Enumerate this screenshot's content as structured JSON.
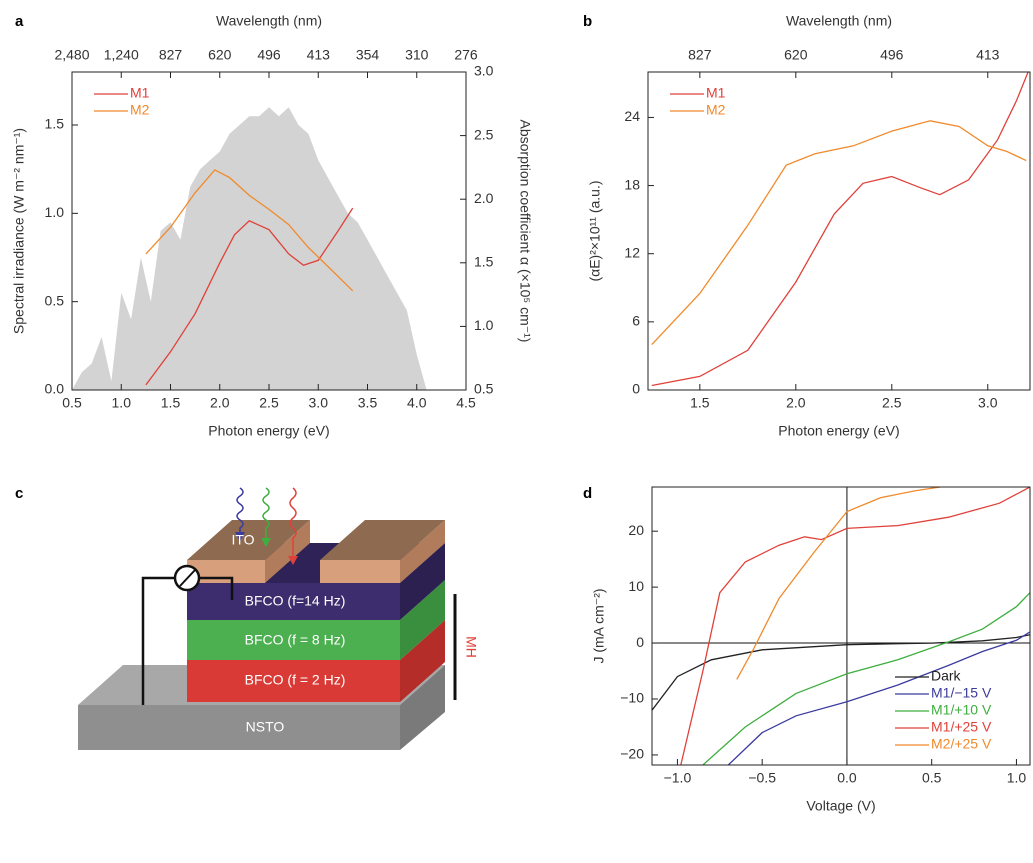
{
  "chart_data": [
    {
      "panel_label": "a",
      "type": "line",
      "x_label": "Photon energy (eV)",
      "y_label": "Spectral irradiance (W m⁻² nm⁻¹)",
      "y2_label": "Absorption coefficient α (×10⁵ cm⁻¹)",
      "top_label": "Wavelength (nm)",
      "xlim": [
        0.5,
        4.5
      ],
      "xticks": [
        0.5,
        {
          "value": 1,
          "label": "1.0"
        },
        1.5,
        {
          "value": 2,
          "label": "2.0"
        },
        2.5,
        {
          "value": 3,
          "label": "3.0"
        },
        3.5,
        {
          "value": 4,
          "label": "4.0"
        },
        4.5
      ],
      "top_ticks": [
        {
          "value": 0.5,
          "label": "2,480"
        },
        {
          "value": 1,
          "label": "1,240"
        },
        {
          "value": 1.5,
          "label": "827"
        },
        {
          "value": 2,
          "label": "620"
        },
        {
          "value": 2.5,
          "label": "496"
        },
        {
          "value": 3,
          "label": "413"
        },
        {
          "value": 3.5,
          "label": "354"
        },
        {
          "value": 4,
          "label": "310"
        },
        {
          "value": 4.5,
          "label": "276"
        }
      ],
      "ylim": [
        0,
        1.8
      ],
      "yticks": [
        {
          "value": 0,
          "label": "0.0"
        },
        0.5,
        {
          "value": 1,
          "label": "1.0"
        },
        1.5
      ],
      "y2lim": [
        0.5,
        3.0
      ],
      "y2ticks": [
        0.5,
        {
          "value": 1,
          "label": "1.0"
        },
        1.5,
        {
          "value": 2,
          "label": "2.0"
        },
        2.5,
        {
          "value": 3,
          "label": "3.0"
        }
      ],
      "legend": "upper left",
      "area": {
        "color": "#d3d3d3",
        "x": [
          0.5,
          0.6,
          0.7,
          0.8,
          0.9,
          1.0,
          1.1,
          1.2,
          1.3,
          1.4,
          1.5,
          1.6,
          1.7,
          1.8,
          1.9,
          2.0,
          2.1,
          2.2,
          2.3,
          2.4,
          2.5,
          2.6,
          2.7,
          2.8,
          2.9,
          3.0,
          3.1,
          3.2,
          3.3,
          3.4,
          3.5,
          3.6,
          3.7,
          3.8,
          3.9,
          4.0,
          4.1
        ],
        "values": [
          0,
          0.1,
          0.15,
          0.3,
          0.05,
          0.55,
          0.4,
          0.75,
          0.5,
          0.9,
          0.95,
          0.85,
          1.15,
          1.25,
          1.3,
          1.35,
          1.45,
          1.5,
          1.55,
          1.55,
          1.6,
          1.55,
          1.6,
          1.5,
          1.45,
          1.3,
          1.2,
          1.1,
          1.0,
          0.95,
          0.85,
          0.75,
          0.65,
          0.55,
          0.45,
          0.2,
          0
        ]
      },
      "series": [
        {
          "name": "M1",
          "color": "#e0413a",
          "axis": "y2",
          "x": [
            1.25,
            1.5,
            1.75,
            2.0,
            2.15,
            2.3,
            2.5,
            2.7,
            2.85,
            3.0,
            3.2,
            3.35
          ],
          "values": [
            0.54,
            0.8,
            1.1,
            1.5,
            1.72,
            1.83,
            1.76,
            1.57,
            1.48,
            1.52,
            1.75,
            1.93
          ]
        },
        {
          "name": "M2",
          "color": "#f08a2c",
          "axis": "y2",
          "x": [
            1.25,
            1.5,
            1.75,
            1.95,
            2.1,
            2.3,
            2.5,
            2.7,
            2.9,
            3.1,
            3.35
          ],
          "values": [
            1.57,
            1.78,
            2.05,
            2.23,
            2.17,
            2.03,
            1.92,
            1.8,
            1.62,
            1.47,
            1.28
          ]
        }
      ]
    },
    {
      "panel_label": "b",
      "type": "line",
      "x_label": "Photon energy (eV)",
      "y_label": "(αE)²×10¹¹ (a.u.)",
      "top_label": "Wavelength (nm)",
      "xlim": [
        1.23,
        3.22
      ],
      "xticks": [
        1.5,
        {
          "value": 2,
          "label": "2.0"
        },
        2.5,
        {
          "value": 3,
          "label": "3.0"
        }
      ],
      "top_ticks": [
        {
          "value": 1.5,
          "label": "827"
        },
        {
          "value": 2,
          "label": "620"
        },
        {
          "value": 2.5,
          "label": "496"
        },
        {
          "value": 3,
          "label": "413"
        }
      ],
      "ylim": [
        0,
        28
      ],
      "yticks": [
        0,
        6,
        12,
        18,
        24
      ],
      "legend": "upper left",
      "series": [
        {
          "name": "M1",
          "color": "#e0413a",
          "x": [
            1.25,
            1.5,
            1.75,
            2.0,
            2.2,
            2.35,
            2.5,
            2.65,
            2.75,
            2.9,
            3.05,
            3.15,
            3.21
          ],
          "values": [
            0.4,
            1.2,
            3.5,
            9.5,
            15.5,
            18.2,
            18.8,
            17.8,
            17.2,
            18.5,
            22,
            25.5,
            28
          ]
        },
        {
          "name": "M2",
          "color": "#f08a2c",
          "x": [
            1.25,
            1.5,
            1.75,
            1.95,
            2.1,
            2.3,
            2.5,
            2.7,
            2.85,
            3.0,
            3.1,
            3.2
          ],
          "values": [
            4,
            8.5,
            14.5,
            19.8,
            20.8,
            21.5,
            22.8,
            23.7,
            23.2,
            21.5,
            21.0,
            20.2
          ]
        }
      ]
    },
    {
      "panel_label": "d",
      "type": "line",
      "x_label": "Voltage (V)",
      "y_label": "J (mA cm⁻²)",
      "zero_lines": true,
      "xlim": [
        -1.15,
        1.08
      ],
      "xticks": [
        {
          "value": -1,
          "label": "−1.0"
        },
        {
          "value": -0.5,
          "label": "−0.5"
        },
        {
          "value": 0,
          "label": "0.0"
        },
        0.5,
        {
          "value": 1,
          "label": "1.0"
        }
      ],
      "ylim": [
        -21.8,
        27.9
      ],
      "yticks": [
        {
          "value": -20,
          "label": "−20"
        },
        {
          "value": -10,
          "label": "−10"
        },
        0,
        10,
        20
      ],
      "legend": "lower right",
      "series": [
        {
          "name": "Dark",
          "color": "#222222",
          "x": [
            -1.15,
            -1.0,
            -0.8,
            -0.5,
            0,
            0.5,
            0.8,
            1.0,
            1.08
          ],
          "values": [
            -12,
            -6,
            -3,
            -1.2,
            -0.3,
            0,
            0.4,
            1,
            1.5
          ]
        },
        {
          "name": "M1/−15 V",
          "color": "#3b3b9e",
          "x": [
            -0.7,
            -0.5,
            -0.3,
            0,
            0.3,
            0.6,
            0.8,
            1.0,
            1.08
          ],
          "values": [
            -21.8,
            -16,
            -13,
            -10.5,
            -7.5,
            -4,
            -1.5,
            0.5,
            2
          ]
        },
        {
          "name": "M1/+10 V",
          "color": "#3fae3f",
          "x": [
            -0.85,
            -0.6,
            -0.3,
            0,
            0.3,
            0.6,
            0.8,
            1.0,
            1.08
          ],
          "values": [
            -21.8,
            -15,
            -9,
            -5.5,
            -3,
            0.2,
            2.5,
            6.5,
            9
          ]
        },
        {
          "name": "M1/+25 V",
          "color": "#e0413a",
          "x": [
            -0.98,
            -0.85,
            -0.75,
            -0.6,
            -0.4,
            -0.25,
            -0.15,
            0,
            0.3,
            0.6,
            0.9,
            1.08
          ],
          "values": [
            -21.8,
            -5,
            9,
            14.5,
            17.5,
            19,
            18.5,
            20.5,
            21,
            22.5,
            25,
            27.9
          ]
        },
        {
          "name": "M2/+25 V",
          "color": "#f08a2c",
          "x": [
            -0.65,
            -0.55,
            -0.4,
            -0.2,
            0,
            0.2,
            0.4,
            0.55
          ],
          "values": [
            -6.5,
            -1,
            8,
            16,
            23.5,
            26,
            27.2,
            27.9
          ]
        }
      ]
    }
  ],
  "diagram": {
    "panel_label": "c",
    "ito": "ITO",
    "layers": [
      "BFCO (f=14 Hz)",
      "BFCO (f = 8 Hz)",
      "BFCO (f = 2 Hz)"
    ],
    "substrate": "NSTO",
    "bracket": "MH"
  }
}
